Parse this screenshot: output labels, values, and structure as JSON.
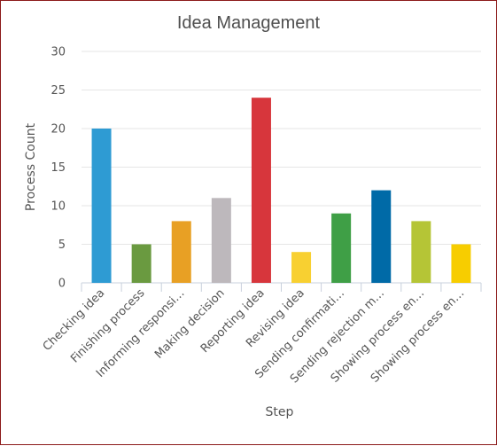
{
  "chart_data": {
    "type": "bar",
    "title": "Idea Management",
    "xlabel": "Step",
    "ylabel": "Process Count",
    "ylim": [
      0,
      30
    ],
    "yticks": [
      0,
      5,
      10,
      15,
      20,
      25,
      30
    ],
    "grid": true,
    "legend": "none",
    "categories": [
      "Checking idea",
      "Finishing process",
      "Informing responsi…",
      "Making decision",
      "Reporting idea",
      "Revising idea",
      "Sending confirmati…",
      "Sending rejection m…",
      "Showing process en…",
      "Showing process en…"
    ],
    "values": [
      20,
      5,
      8,
      11,
      24,
      4,
      9,
      12,
      8,
      5
    ],
    "colors": [
      "#2e9bd3",
      "#6a9a40",
      "#e8a024",
      "#bdb8bc",
      "#d7363c",
      "#f8d031",
      "#3f9f46",
      "#006aa7",
      "#b5c536",
      "#f7cd00"
    ]
  }
}
